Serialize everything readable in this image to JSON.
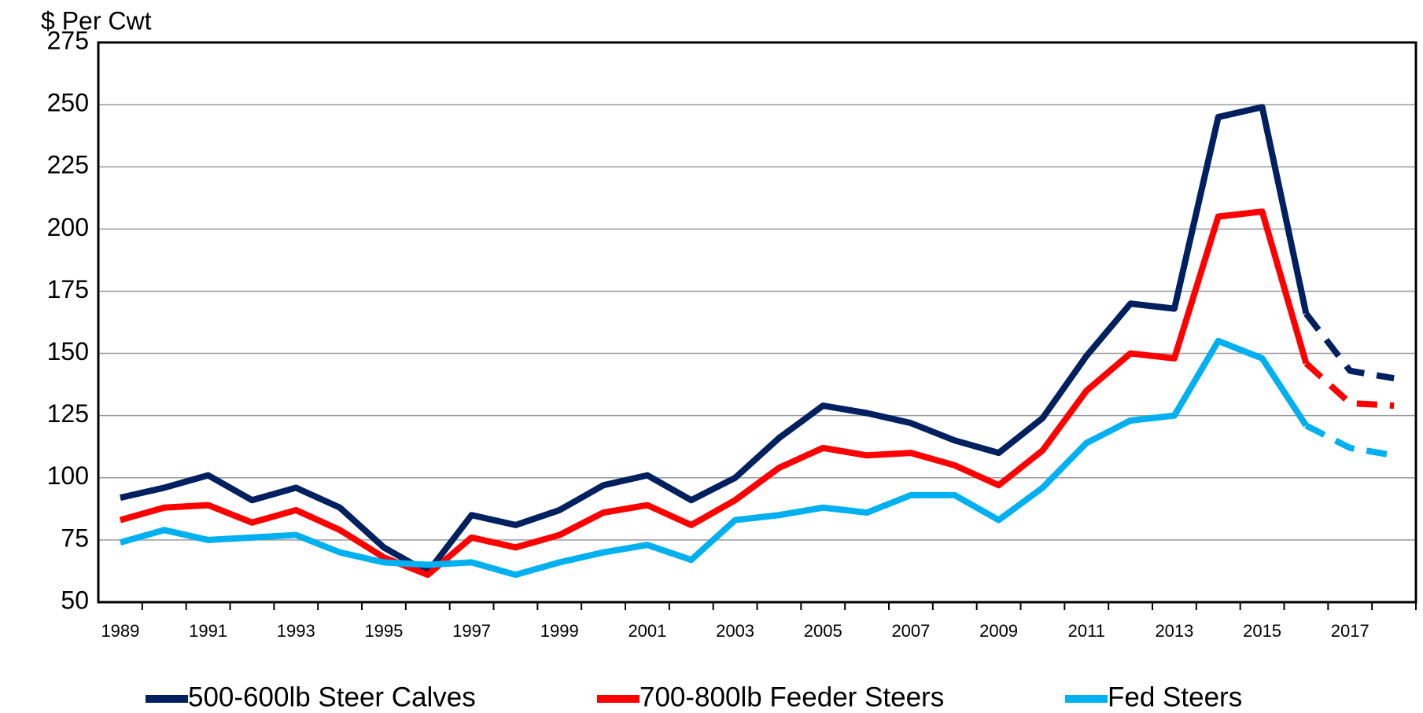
{
  "chart_data": {
    "type": "line",
    "y_label": "$ Per Cwt",
    "categories": [
      "1989",
      null,
      "1991",
      null,
      "1993",
      null,
      "1995",
      null,
      "1997",
      null,
      "1999",
      null,
      "2001",
      null,
      "2003",
      null,
      "2005",
      null,
      "2007",
      null,
      "2009",
      null,
      "2011",
      null,
      "2013",
      null,
      "2015",
      null,
      "2017",
      null
    ],
    "series": [
      {
        "name": "500-600lb Steer Calves",
        "color": "#002060",
        "values": [
          92,
          96,
          101,
          91,
          96,
          88,
          72,
          62,
          85,
          81,
          87,
          97,
          101,
          91,
          100,
          116,
          129,
          126,
          122,
          115,
          110,
          124,
          149,
          170,
          168,
          245,
          249,
          166,
          143,
          140
        ]
      },
      {
        "name": "700-800lb Feeder Steers",
        "color": "#ff0000",
        "values": [
          83,
          88,
          89,
          82,
          87,
          79,
          68,
          61,
          76,
          72,
          77,
          86,
          89,
          81,
          91,
          104,
          112,
          109,
          110,
          105,
          97,
          111,
          135,
          150,
          148,
          205,
          207,
          146,
          130,
          129
        ]
      },
      {
        "name": "Fed Steers",
        "color": "#00b0f0",
        "values": [
          74,
          79,
          75,
          76,
          77,
          70,
          66,
          65,
          66,
          61,
          66,
          70,
          73,
          67,
          83,
          85,
          88,
          86,
          93,
          93,
          83,
          96,
          114,
          123,
          125,
          155,
          148,
          121,
          112,
          109
        ]
      }
    ],
    "dashed_from": 27,
    "ylim": [
      50,
      275
    ],
    "yticks": [
      50,
      75,
      100,
      125,
      150,
      175,
      200,
      225,
      250,
      275
    ],
    "grid": true,
    "legend": "bottom"
  }
}
